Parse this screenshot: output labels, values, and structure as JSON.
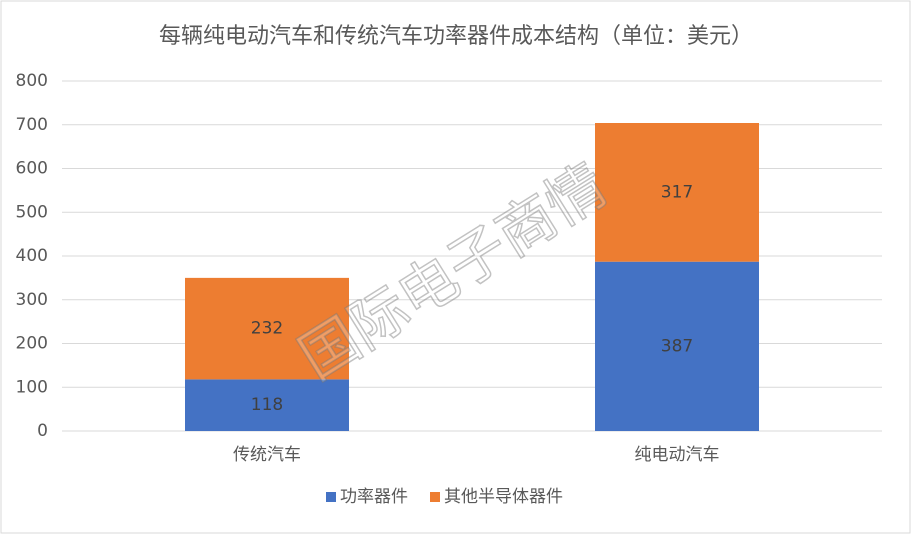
{
  "chart_data": {
    "type": "stacked_bar",
    "title": "每辆纯电动汽车和传统汽车功率器件成本结构（单位：美元）",
    "categories": [
      "传统汽车",
      "纯电动汽车"
    ],
    "series": [
      {
        "name": "功率器件",
        "color": "#4472c4",
        "values": [
          118,
          387
        ]
      },
      {
        "name": "其他半导体器件",
        "color": "#ed7d31",
        "values": [
          232,
          317
        ]
      }
    ],
    "ylim": [
      0,
      800
    ],
    "yticks": [
      0,
      100,
      200,
      300,
      400,
      500,
      600,
      700,
      800
    ],
    "grid": true,
    "legend": "bottom",
    "watermark": "国际电子商情"
  }
}
